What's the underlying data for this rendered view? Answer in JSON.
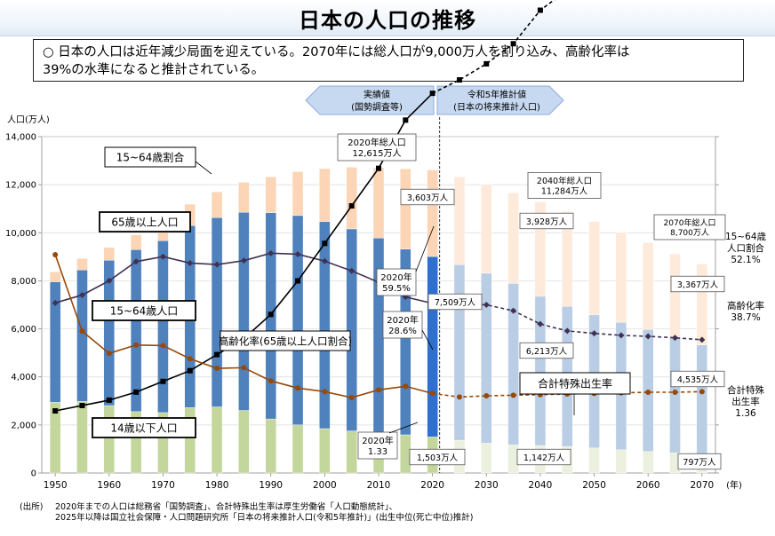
{
  "title": "日本の人口の推移",
  "summary": {
    "line1": "○ 日本の人口は近年減少局面を迎えている。2070年には総人口が9,000万人を割り込み、高齢化率は",
    "line2": "39%の水準になると推計されている。"
  },
  "header_arrows": {
    "actual": {
      "line1": "実績値",
      "line2": "(国勢調査等)"
    },
    "projection": {
      "line1": "令和5年推計値",
      "line2": "(日本の将来推計人口)"
    }
  },
  "footnote": {
    "source_label": "(出所)",
    "line1": "2020年までの人口は総務省「国勢調査」、合計特殊出生率は厚生労働省「人口動態統計」、",
    "line2": "2025年以降は国立社会保障・人口問題研究所「日本の将来推計人口(令和5年推計)」(出生中位(死亡中位)推計)"
  },
  "colors": {
    "under15_actual": "#c3d69b",
    "under15_proj": "#ebf1de",
    "age15_64_actual": "#4f81bd",
    "age15_64_proj": "#b9cde5",
    "over65_actual": "#fbd5b5",
    "over65_proj": "#fdeada",
    "highlight_2020_15_64": "#2f6fd0",
    "line_working_ratio": "#403152",
    "line_aging": "#000000",
    "line_fertility": "#984807",
    "arrow_fill": "#c6d9f1",
    "arrow_stroke": "#8eaadb"
  },
  "chart_data": {
    "type": "bar",
    "stacked": true,
    "y_axis_label": "人口(万人)",
    "x_axis_unit": "(年)",
    "ylim": [
      0,
      14000
    ],
    "y_ticks": [
      0,
      2000,
      4000,
      6000,
      8000,
      10000,
      12000,
      14000
    ],
    "y_tick_labels": [
      "0",
      "2,000",
      "4,000",
      "6,000",
      "8,000",
      "10,000",
      "12,000",
      "14,000"
    ],
    "x_tick_labels": [
      "1950",
      "1960",
      "1970",
      "1980",
      "1990",
      "2000",
      "2010",
      "2020",
      "2030",
      "2040",
      "2050",
      "2060",
      "2070"
    ],
    "years": [
      1950,
      1955,
      1960,
      1965,
      1970,
      1975,
      1980,
      1985,
      1990,
      1995,
      2000,
      2005,
      2010,
      2015,
      2020,
      2025,
      2030,
      2035,
      2040,
      2045,
      2050,
      2055,
      2060,
      2065,
      2070
    ],
    "last_actual_year": 2020,
    "series": [
      {
        "name": "14歳以下人口",
        "values": [
          2943,
          2980,
          2807,
          2553,
          2515,
          2722,
          2751,
          2603,
          2249,
          2001,
          1847,
          1752,
          1680,
          1589,
          1503,
          1363,
          1240,
          1169,
          1142,
          1103,
          1041,
          966,
          893,
          837,
          797
        ]
      },
      {
        "name": "15~64歳人口",
        "values": [
          5017,
          5473,
          6047,
          6744,
          7157,
          7581,
          7883,
          8251,
          8590,
          8716,
          8622,
          8409,
          8103,
          7728,
          7509,
          7310,
          7076,
          6722,
          6213,
          5832,
          5540,
          5302,
          5078,
          4809,
          4535
        ]
      },
      {
        "name": "65歳以上人口",
        "values": [
          411,
          475,
          535,
          618,
          733,
          887,
          1065,
          1247,
          1489,
          1826,
          2201,
          2567,
          2925,
          3347,
          3603,
          3653,
          3696,
          3773,
          3928,
          3945,
          3888,
          3756,
          3616,
          3467,
          3367
        ]
      }
    ],
    "lines": [
      {
        "name": "15~64歳割合",
        "values": [
          59.6,
          61.2,
          64.1,
          68.0,
          69.0,
          67.7,
          67.4,
          68.2,
          69.7,
          69.5,
          68.1,
          66.1,
          63.8,
          60.8,
          59.5,
          59.5,
          59.2,
          58.0,
          55.3,
          53.9,
          53.4,
          53.0,
          52.8,
          52.5,
          52.1
        ]
      },
      {
        "name": "高齢化率(65歳以上人口割合)",
        "values": [
          4.9,
          5.3,
          5.7,
          6.3,
          7.1,
          7.9,
          9.1,
          10.3,
          12.1,
          14.6,
          17.4,
          20.2,
          23.0,
          26.6,
          28.6,
          29.6,
          30.8,
          32.3,
          34.8,
          36.3,
          37.1,
          37.6,
          37.9,
          38.4,
          38.7
        ]
      },
      {
        "name": "合計特殊出生率",
        "values": [
          3.65,
          2.37,
          2.0,
          2.14,
          2.13,
          1.91,
          1.75,
          1.76,
          1.54,
          1.42,
          1.36,
          1.26,
          1.39,
          1.45,
          1.33,
          1.27,
          1.29,
          1.3,
          1.31,
          1.32,
          1.33,
          1.34,
          1.35,
          1.35,
          1.36
        ]
      }
    ],
    "legend_labels": {
      "working_ratio": "15~64歳割合",
      "over65": "65歳以上人口",
      "age15_64": "15~64歳人口",
      "aging_rate": "高齢化率(65歳以上人口割合)",
      "under15": "14歳以下人口",
      "fertility": "合計特殊出生率"
    },
    "annotations": {
      "total_2020": {
        "line1": "2020年総人口",
        "line2": "12,615万人"
      },
      "total_2040": {
        "line1": "2040年総人口",
        "line2": "11,284万人"
      },
      "total_2070": {
        "line1": "2070年総人口",
        "line2": "8,700万人"
      },
      "over65_2020": "3,603万人",
      "over65_2040": "3,928万人",
      "over65_2070": "3,367万人",
      "working_2020": "7,509万人",
      "working_2040": "6,213万人",
      "working_2070": "4,535万人",
      "under15_2020": "1,503万人",
      "under15_2040": "1,142万人",
      "under15_2070": "797万人",
      "working_ratio_2020": {
        "line1": "2020年",
        "line2": "59.5%"
      },
      "aging_rate_2020": {
        "line1": "2020年",
        "line2": "28.6%"
      },
      "fertility_2020": {
        "line1": "2020年",
        "line2": "1.33"
      },
      "right_working_ratio": {
        "line1": "15~64歳",
        "line2": "人口割合",
        "line3": "52.1%"
      },
      "right_aging_rate": {
        "line1": "高齢化率",
        "line2": "38.7%"
      },
      "right_fertility": {
        "line1": "合計特殊",
        "line2": "出生率",
        "line3": "1.36"
      }
    }
  }
}
